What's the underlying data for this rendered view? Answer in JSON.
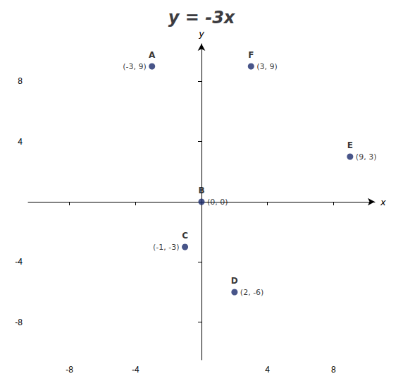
{
  "chart_data": {
    "type": "scatter",
    "title": "y = -3x",
    "xlabel": "x",
    "ylabel": "y",
    "x": [
      -3,
      0,
      -1,
      2,
      9,
      3
    ],
    "values": [
      9,
      0,
      -3,
      -6,
      3,
      9
    ],
    "labels": [
      "A",
      "B",
      "C",
      "D",
      "E",
      "F"
    ],
    "value_labels": [
      "(-3, 9)",
      "(0, 0)",
      "(-1, -3)",
      "(2, -6)",
      "(9, 3)",
      "(3, 9)"
    ],
    "color": "#1a2a6c",
    "xlim": [
      -10.5,
      10.5
    ],
    "ylim": [
      -10.5,
      10.5
    ],
    "xticks": [
      -8,
      -4,
      4,
      8
    ],
    "yticks": [
      -8,
      -4,
      4,
      8
    ],
    "grid": false,
    "data_labels": true
  }
}
